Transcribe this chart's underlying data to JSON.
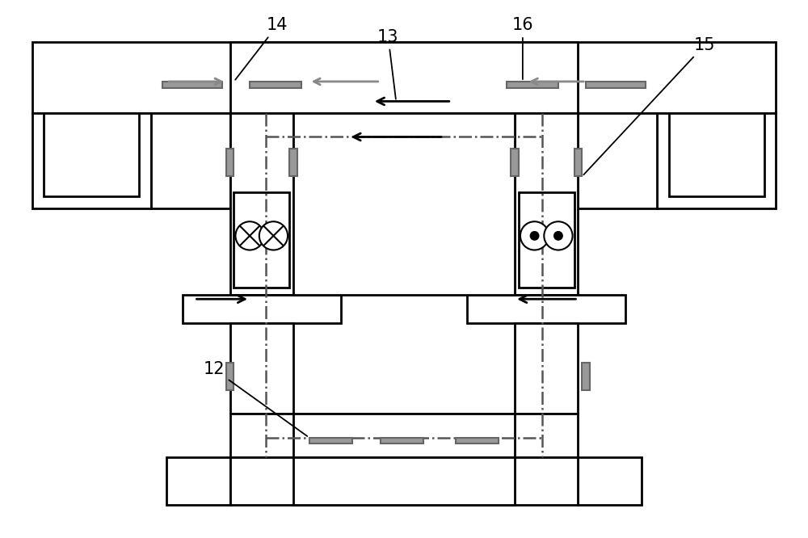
{
  "bg_color": "#ffffff",
  "lc": "#000000",
  "gc": "#888888",
  "gray_fc": "#aaaaaa",
  "ddc": "#777777",
  "figsize": [
    10.0,
    6.66
  ],
  "dpi": 100,
  "label_fontsize": 15
}
